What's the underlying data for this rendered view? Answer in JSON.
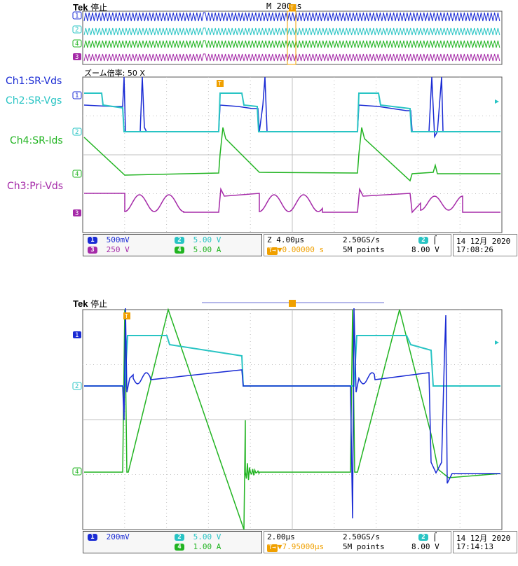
{
  "colors": {
    "ch1": "#1a2bd4",
    "ch2": "#29c4c4",
    "ch3": "#a52aa8",
    "ch4": "#22b422",
    "trigger": "#f0a000",
    "grid": "#c0c0c0",
    "frame": "#555555"
  },
  "top": {
    "brand": "Tek",
    "state": "停止",
    "timebase": "M 200µs",
    "zoom_label": "ズーム倍率: 50 X",
    "side_labels": [
      {
        "key": "ch1",
        "text": "Ch1:SR-Vds"
      },
      {
        "key": "ch2",
        "text": "Ch2:SR-Vgs"
      },
      {
        "key": "ch4",
        "text": "Ch4:SR-Ids"
      },
      {
        "key": "ch3",
        "text": "Ch3:Pri-Vds"
      }
    ],
    "status": {
      "ch1_num": "1",
      "ch1_scale": "500mV",
      "ch2_num": "2",
      "ch2_scale": "5.00 V",
      "ch3_num": "3",
      "ch3_scale": "250 V",
      "ch4_num": "4",
      "ch4_scale": "5.00 A",
      "zoom_time": "Z 4.00µs",
      "sample_rate": "2.50GS/s",
      "trig_pos": "▼0.00000 s",
      "record": "5M points",
      "trig_ch": "2",
      "trig_level": "8.00 V",
      "date": "14 12月 2020",
      "time": "17:08:26"
    }
  },
  "bottom": {
    "brand": "Tek",
    "state": "停止",
    "status": {
      "ch1_num": "1",
      "ch1_scale": "200mV",
      "ch2_num": "2",
      "ch2_scale": "5.00 V",
      "ch4_num": "4",
      "ch4_scale": "1.00 A",
      "time_div": "2.00µs",
      "sample_rate": "2.50GS/s",
      "trig_pos": "▼7.95000µs",
      "record": "5M points",
      "trig_ch": "2",
      "trig_level": "8.00 V",
      "date": "14 12月 2020",
      "time": "17:14:13"
    }
  },
  "chart_data": [
    {
      "type": "line",
      "title": "",
      "xlabel": "",
      "ylabel": "",
      "x_unit": "µs",
      "x_per_div": 4.0,
      "x": [
        0,
        4,
        8,
        12,
        16,
        20,
        24,
        28,
        32,
        36,
        40
      ],
      "grid": true,
      "series": [
        {
          "name": "Ch1:SR-Vds",
          "channel": "1",
          "values": [
            4.2,
            3.9,
            3.9,
            0.0,
            2.5,
            4.0,
            0.0,
            0.0,
            4.3,
            2.5,
            0.0
          ]
        },
        {
          "name": "Ch2:SR-Vgs",
          "channel": "2",
          "values": [
            2.3,
            2.3,
            0.0,
            0.0,
            2.3,
            2.3,
            0.0,
            0.0,
            2.3,
            2.3,
            0.0
          ]
        },
        {
          "name": "Ch4:SR-Ids",
          "channel": "4",
          "values": [
            1.8,
            0.7,
            0.0,
            0.0,
            3.5,
            1.7,
            0.0,
            0.0,
            3.5,
            1.5,
            0.0
          ]
        },
        {
          "name": "Ch3:Pri-Vds",
          "channel": "3",
          "values": [
            1.0,
            1.0,
            -0.5,
            -0.5,
            1.0,
            1.0,
            -0.5,
            -0.5,
            1.0,
            1.0,
            -0.5
          ]
        }
      ]
    },
    {
      "type": "line",
      "title": "",
      "xlabel": "",
      "ylabel": "",
      "x_unit": "µs",
      "x_per_div": 2.0,
      "x": [
        0,
        2,
        4,
        6,
        8,
        10,
        12,
        14,
        16,
        18,
        20
      ],
      "grid": true,
      "series": [
        {
          "name": "Ch1",
          "channel": "1",
          "values": [
            0.0,
            -3.0,
            0.0,
            0.0,
            0.5,
            0.8,
            0.0,
            0.0,
            -3.0,
            0.0,
            -4.0
          ]
        },
        {
          "name": "Ch2",
          "channel": "2",
          "values": [
            0.0,
            0.0,
            3.0,
            2.5,
            2.3,
            0.0,
            0.0,
            0.0,
            3.0,
            2.4,
            0.0
          ]
        },
        {
          "name": "Ch4",
          "channel": "4",
          "values": [
            0.0,
            0.0,
            0.0,
            -3.0,
            -5.0,
            0.0,
            0.0,
            0.0,
            0.0,
            -0.5,
            0.0
          ]
        }
      ]
    }
  ]
}
